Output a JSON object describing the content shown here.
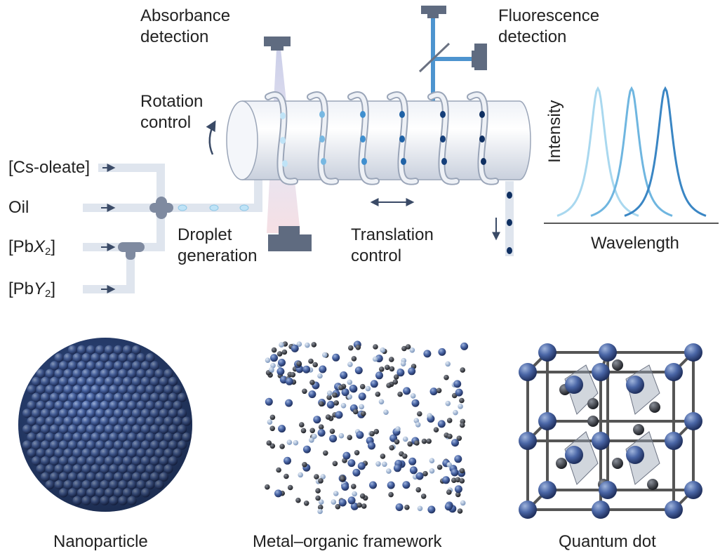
{
  "top": {
    "absorbance": [
      "Absorbance",
      "detection"
    ],
    "fluorescence": [
      "Fluorescence",
      "detection"
    ],
    "rotation": [
      "Rotation",
      "control"
    ],
    "droplet": [
      "Droplet",
      "generation"
    ],
    "translation": [
      "Translation",
      "control"
    ]
  },
  "inputs": {
    "cs_oleate": "[Cs-oleate]",
    "oil": "Oil",
    "pbx2": {
      "open": "[Pb",
      "var": "X",
      "sub": "2",
      "close": "]"
    },
    "pby2": {
      "open": "[Pb",
      "var": "Y",
      "sub": "2",
      "close": "]"
    }
  },
  "spectrum": {
    "ylabel": "Intensity",
    "xlabel": "Wavelength",
    "colors": [
      "#a9d8ef",
      "#6fb6e0",
      "#3a86c4"
    ]
  },
  "bottom": {
    "nanoparticle": "Nanoparticle",
    "mof": "Metal–organic framework",
    "qd": "Quantum dot"
  },
  "colors": {
    "tube": "#dfe5ee",
    "detector": "#5f6b80",
    "atom": "#3f5f9e",
    "arrow": "#3a4a66"
  }
}
